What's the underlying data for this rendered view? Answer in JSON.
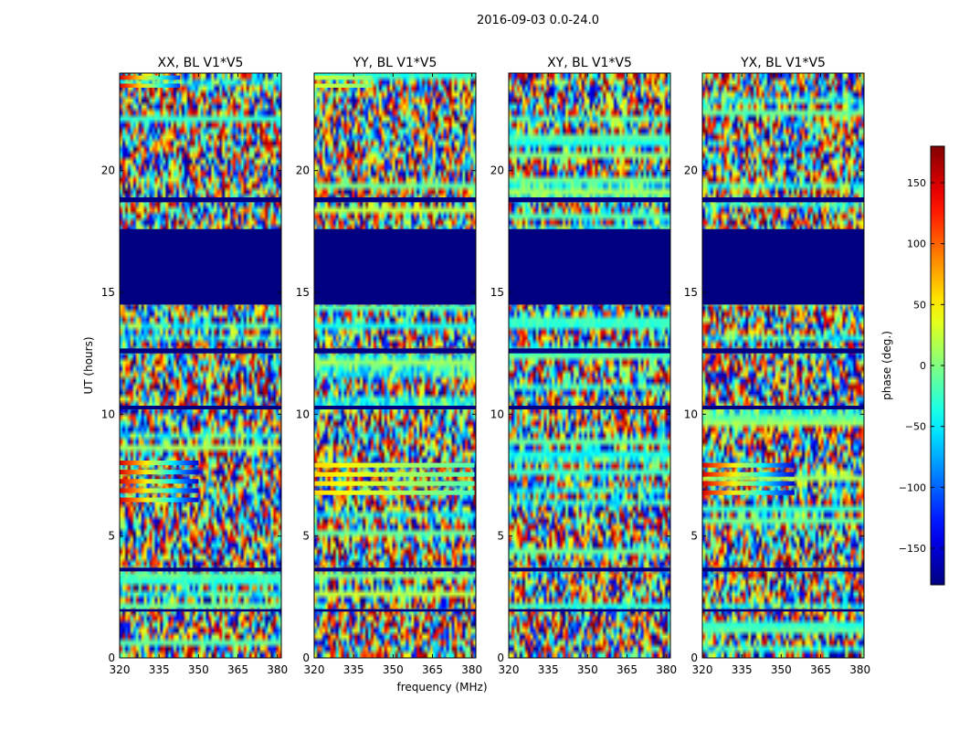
{
  "figure_title": "2016-09-03 0.0-24.0",
  "xlabel": "frequency (MHz)",
  "ylabel": "UT (hours)",
  "colorbar": {
    "label": "phase (deg.)",
    "range": [
      -180,
      180
    ],
    "ticks": [
      150,
      100,
      50,
      0,
      -50,
      -100,
      -150
    ],
    "tick_labels": [
      "150",
      "100",
      "50",
      "0",
      "−50",
      "−100",
      "−150"
    ],
    "colormap": "jet"
  },
  "chart_data": [
    {
      "type": "heatmap",
      "title": "XX, BL V1*V5",
      "xlim": [
        320,
        381.5
      ],
      "ylim": [
        0,
        24
      ],
      "xticks": [
        320,
        335,
        350,
        365,
        380
      ],
      "yticks": [
        0,
        5,
        10,
        15,
        20
      ],
      "value_range": [
        -180,
        180
      ],
      "flagged_ut_ranges": [
        [
          14.5,
          17.6
        ],
        [
          18.7,
          18.9
        ],
        [
          12.5,
          12.7
        ],
        [
          10.2,
          10.35
        ],
        [
          3.55,
          3.7
        ],
        [
          1.9,
          2.0
        ]
      ],
      "coherent_features": [
        {
          "ut_range": [
            23.4,
            23.9
          ],
          "freq_range": [
            320,
            343
          ],
          "phase_range": [
            -120,
            150
          ]
        },
        {
          "ut_range": [
            6.2,
            8.1
          ],
          "freq_range": [
            320,
            350
          ],
          "phase_range": [
            -150,
            150
          ]
        }
      ]
    },
    {
      "type": "heatmap",
      "title": "YY, BL V1*V5",
      "xlim": [
        320,
        381.5
      ],
      "ylim": [
        0,
        24
      ],
      "xticks": [
        320,
        335,
        350,
        365,
        380
      ],
      "yticks": [
        0,
        5,
        10,
        15,
        20
      ],
      "value_range": [
        -180,
        180
      ],
      "flagged_ut_ranges": [
        [
          14.5,
          17.6
        ],
        [
          18.7,
          18.9
        ],
        [
          12.5,
          12.7
        ],
        [
          10.2,
          10.35
        ],
        [
          3.55,
          3.7
        ],
        [
          1.9,
          2.0
        ]
      ],
      "coherent_features": [
        {
          "ut_range": [
            23.4,
            23.9
          ],
          "freq_range": [
            320,
            342
          ],
          "phase_range": [
            0,
            30
          ]
        },
        {
          "ut_range": [
            6.5,
            8.0
          ],
          "freq_range": [
            320,
            381
          ],
          "phase_range": [
            -20,
            60
          ]
        }
      ]
    },
    {
      "type": "heatmap",
      "title": "XY, BL V1*V5",
      "xlim": [
        320,
        381.5
      ],
      "ylim": [
        0,
        24
      ],
      "xticks": [
        320,
        335,
        350,
        365,
        380
      ],
      "yticks": [
        0,
        5,
        10,
        15,
        20
      ],
      "value_range": [
        -180,
        180
      ],
      "flagged_ut_ranges": [
        [
          14.5,
          17.6
        ],
        [
          18.7,
          18.9
        ],
        [
          12.5,
          12.7
        ],
        [
          10.2,
          10.35
        ],
        [
          3.55,
          3.7
        ],
        [
          1.9,
          2.0
        ]
      ],
      "coherent_features": []
    },
    {
      "type": "heatmap",
      "title": "YX, BL V1*V5",
      "xlim": [
        320,
        381.5
      ],
      "ylim": [
        0,
        24
      ],
      "xticks": [
        320,
        335,
        350,
        365,
        380
      ],
      "yticks": [
        0,
        5,
        10,
        15,
        20
      ],
      "value_range": [
        -180,
        180
      ],
      "flagged_ut_ranges": [
        [
          14.5,
          17.6
        ],
        [
          18.7,
          18.9
        ],
        [
          12.5,
          12.7
        ],
        [
          10.2,
          10.35
        ],
        [
          3.55,
          3.7
        ],
        [
          1.9,
          2.0
        ]
      ],
      "coherent_features": [
        {
          "ut_range": [
            6.5,
            8.0
          ],
          "freq_range": [
            320,
            355
          ],
          "phase_range": [
            -150,
            150
          ]
        }
      ]
    }
  ]
}
